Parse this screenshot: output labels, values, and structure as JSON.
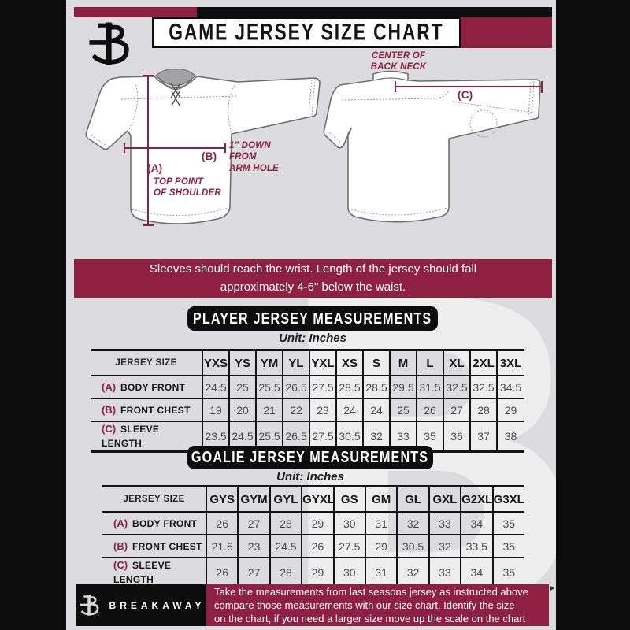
{
  "colors": {
    "accent_maroon": "#8e2041",
    "black": "#0d0d0d",
    "page_gray": "#dcdcde"
  },
  "header": {
    "title": "GAME JERSEY SIZE CHART",
    "logo": "breakaway-monogram-icon"
  },
  "diagram": {
    "front": {
      "label_a": "(A)",
      "note_a": "TOP POINT\nOF SHOULDER",
      "label_b": "(B)",
      "note_b": "1\" DOWN\nFROM\nARM HOLE"
    },
    "back": {
      "label_c": "(C)",
      "note_c": "CENTER OF\nBACK NECK"
    }
  },
  "notice": "Sleeves should reach the wrist. Length of the jersey should fall\napproximately 4-6\" below the waist.",
  "player_table": {
    "section_title": "PLAYER JERSEY MEASUREMENTS",
    "unit": "Unit: Inches",
    "header_label": "JERSEY SIZE",
    "sizes": [
      "YXS",
      "YS",
      "YM",
      "YL",
      "YXL",
      "XS",
      "S",
      "M",
      "L",
      "XL",
      "2XL",
      "3XL"
    ],
    "rows": [
      {
        "key": "(A)",
        "label": "BODY FRONT",
        "values": [
          "24.5",
          "25",
          "25.5",
          "26.5",
          "27.5",
          "28.5",
          "28.5",
          "29.5",
          "31.5",
          "32.5",
          "32.5",
          "34.5"
        ]
      },
      {
        "key": "(B)",
        "label": "FRONT CHEST",
        "values": [
          "19",
          "20",
          "21",
          "22",
          "23",
          "24",
          "24",
          "25",
          "26",
          "27",
          "28",
          "29"
        ]
      },
      {
        "key": "(C)",
        "label": "SLEEVE LENGTH",
        "values": [
          "23.5",
          "24.5",
          "25.5",
          "26.5",
          "27.5",
          "30.5",
          "32",
          "33",
          "35",
          "36",
          "37",
          "38"
        ]
      }
    ]
  },
  "goalie_table": {
    "section_title": "GOALIE JERSEY MEASUREMENTS",
    "unit": "Unit: Inches",
    "header_label": "JERSEY SIZE",
    "sizes": [
      "GYS",
      "GYM",
      "GYL",
      "GYXL",
      "GS",
      "GM",
      "GL",
      "GXL",
      "G2XL",
      "G3XL"
    ],
    "rows": [
      {
        "key": "(A)",
        "label": "BODY FRONT",
        "values": [
          "26",
          "27",
          "28",
          "29",
          "30",
          "31",
          "32",
          "33",
          "34",
          "35"
        ]
      },
      {
        "key": "(B)",
        "label": "FRONT CHEST",
        "values": [
          "21.5",
          "23",
          "24.5",
          "26",
          "27.5",
          "29",
          "30.5",
          "32",
          "33.5",
          "35"
        ]
      },
      {
        "key": "(C)",
        "label": "SLEEVE LENGTH",
        "values": [
          "26",
          "27",
          "28",
          "29",
          "30",
          "31",
          "32",
          "33",
          "34",
          "35"
        ]
      }
    ]
  },
  "footer": {
    "brand": "BREAKAWAY",
    "text": "Take the measurements from last seasons jersey as instructed above\ncompare those measurements  with our size chart. Identify the size\non the chart, if you need a larger size move up the scale on the chart"
  },
  "watermark": "B"
}
